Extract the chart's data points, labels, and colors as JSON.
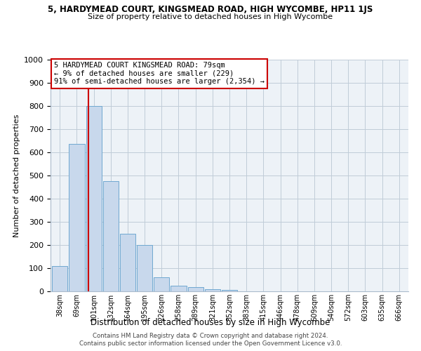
{
  "title_line1": "5, HARDYMEAD COURT, KINGSMEAD ROAD, HIGH WYCOMBE, HP11 1JS",
  "title_line2": "Size of property relative to detached houses in High Wycombe",
  "xlabel": "Distribution of detached houses by size in High Wycombe",
  "ylabel": "Number of detached properties",
  "categories": [
    "38sqm",
    "69sqm",
    "101sqm",
    "132sqm",
    "164sqm",
    "195sqm",
    "226sqm",
    "258sqm",
    "289sqm",
    "321sqm",
    "352sqm",
    "383sqm",
    "415sqm",
    "446sqm",
    "478sqm",
    "509sqm",
    "540sqm",
    "572sqm",
    "603sqm",
    "635sqm",
    "666sqm"
  ],
  "values": [
    110,
    635,
    800,
    475,
    250,
    200,
    60,
    25,
    18,
    10,
    5,
    0,
    0,
    0,
    0,
    0,
    0,
    0,
    0,
    0,
    0
  ],
  "bar_color": "#c8d8ec",
  "bar_edge_color": "#6fa8d0",
  "property_line_x": 1.67,
  "annotation_text": "5 HARDYMEAD COURT KINGSMEAD ROAD: 79sqm\n← 9% of detached houses are smaller (229)\n91% of semi-detached houses are larger (2,354) →",
  "annotation_box_color": "#ffffff",
  "annotation_box_edge_color": "#cc0000",
  "vline_color": "#cc0000",
  "grid_color": "#c0ccd8",
  "background_color": "#edf2f7",
  "footer_line1": "Contains HM Land Registry data © Crown copyright and database right 2024.",
  "footer_line2": "Contains public sector information licensed under the Open Government Licence v3.0.",
  "ylim": [
    0,
    1000
  ],
  "yticks": [
    0,
    100,
    200,
    300,
    400,
    500,
    600,
    700,
    800,
    900,
    1000
  ]
}
